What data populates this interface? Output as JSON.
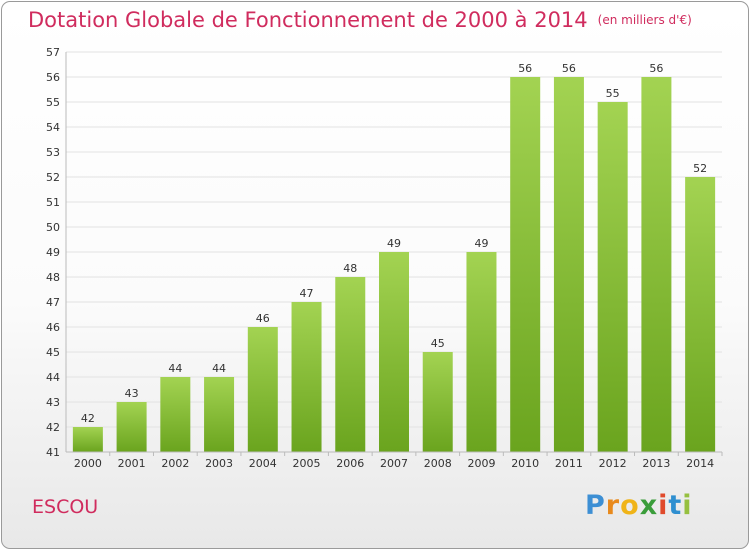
{
  "title": "Dotation Globale de Fonctionnement de 2000 à 2014",
  "unit_note": "(en milliers d'€)",
  "commune": "ESCOU",
  "logo_text": "Proxiti",
  "colors": {
    "title": "#d02c5e",
    "bar_light": "#a3d352",
    "bar_dark": "#6aa41e",
    "grid": "#e2e2e2"
  },
  "chart_data": {
    "type": "bar",
    "title": "Dotation Globale de Fonctionnement de 2000 à 2014",
    "subtitle": "(en milliers d'€)",
    "xlabel": "",
    "ylabel": "",
    "ylim": [
      41,
      57
    ],
    "grid": true,
    "categories": [
      "2000",
      "2001",
      "2002",
      "2003",
      "2004",
      "2005",
      "2006",
      "2007",
      "2008",
      "2009",
      "2010",
      "2011",
      "2012",
      "2013",
      "2014"
    ],
    "values": [
      42,
      43,
      44,
      44,
      46,
      47,
      48,
      49,
      45,
      49,
      56,
      56,
      55,
      56,
      52
    ],
    "yticks": [
      41,
      42,
      43,
      44,
      45,
      46,
      47,
      48,
      49,
      50,
      51,
      52,
      53,
      54,
      55,
      56,
      57
    ]
  }
}
